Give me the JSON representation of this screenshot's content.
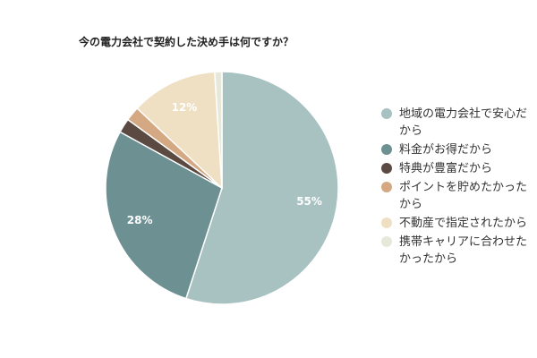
{
  "chart_data": {
    "type": "pie",
    "title": "今の電力会社で契約した決め手は何ですか？",
    "categories": [
      "地域の電力会社で安心だから",
      "料金がお得だから",
      "特典が豊富だから",
      "ポイントを貯めたかったから",
      "不動産で指定されたから",
      "携帯キャリアに合わせたかったから"
    ],
    "values": [
      55,
      28,
      2,
      2,
      12,
      1
    ],
    "value_labels": [
      "55%",
      "28%",
      null,
      null,
      "12%",
      null
    ],
    "colors": [
      "#a8c1c1",
      "#6d9093",
      "#5b4a42",
      "#d4a882",
      "#efdfc3",
      "#e6e9da"
    ],
    "legend": "right"
  }
}
